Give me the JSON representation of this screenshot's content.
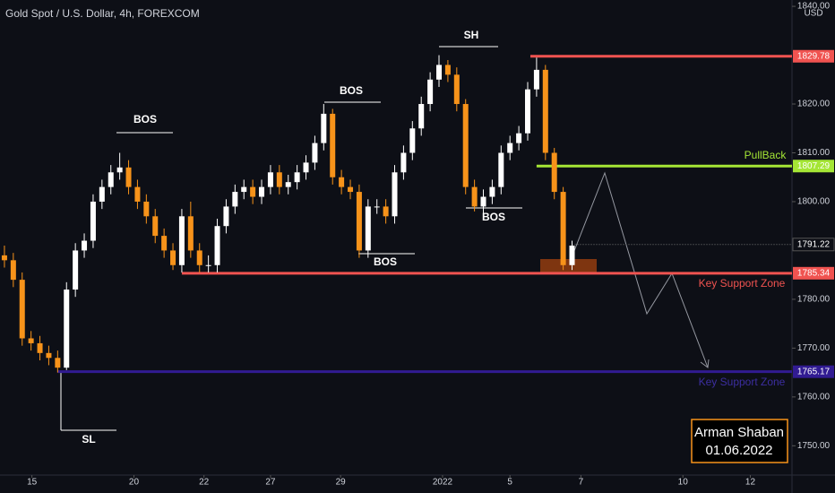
{
  "chart_data": {
    "type": "candlestick",
    "title": "Gold Spot / U.S. Dollar, 4h, FOREXCOM",
    "currency": "USD",
    "up_color": "#ffffff",
    "down_color": "#f7931a",
    "open": [
      1789,
      1788,
      1784,
      1772,
      1771,
      1769,
      1768,
      1766,
      1782,
      1790,
      1792,
      1800,
      1803,
      1806,
      1807,
      1803,
      1800,
      1797,
      1793,
      1790,
      1787,
      1797,
      1790,
      1787,
      1787,
      1795,
      1799,
      1802,
      1803,
      1801,
      1803,
      1806,
      1803,
      1804,
      1806,
      1808,
      1812,
      1818,
      1805,
      1803,
      1802,
      1790,
      1799,
      1799,
      1797,
      1806,
      1810,
      1815,
      1820,
      1825,
      1828,
      1826,
      1820,
      1803,
      1799,
      1801,
      1803,
      1810,
      1812,
      1814,
      1823,
      1827,
      1810,
      1802,
      1787
    ],
    "high": [
      1791,
      1789.5,
      1785.5,
      1773.5,
      1772.5,
      1770.5,
      1769.5,
      1783.5,
      1791.5,
      1793.5,
      1801.5,
      1804.5,
      1807.5,
      1810,
      1808.5,
      1804.5,
      1801.5,
      1798.5,
      1794.5,
      1791.5,
      1798.5,
      1800,
      1791.5,
      1789,
      1796.5,
      1800.5,
      1803.5,
      1804.5,
      1804.5,
      1804.5,
      1807.5,
      1807.5,
      1805.5,
      1807.5,
      1809.5,
      1813.5,
      1820,
      1819,
      1806.5,
      1804.5,
      1803.5,
      1800.5,
      1800.5,
      1800.5,
      1807.5,
      1811.5,
      1816.5,
      1821.5,
      1826.5,
      1830,
      1829,
      1827.5,
      1821,
      1804.5,
      1802.5,
      1804.5,
      1811.5,
      1813.5,
      1815.5,
      1824.5,
      1829.5,
      1828,
      1811,
      1803,
      1792
    ],
    "low": [
      1786.5,
      1782.5,
      1770.5,
      1769.5,
      1767.5,
      1766.5,
      1765,
      1765.5,
      1780.5,
      1788.5,
      1790.5,
      1798.5,
      1801.5,
      1804.5,
      1801.5,
      1798.5,
      1795.5,
      1791.5,
      1788.5,
      1786,
      1785.5,
      1788.5,
      1785.5,
      1785.5,
      1785.5,
      1793.5,
      1797.5,
      1800.5,
      1799.5,
      1799.5,
      1801.5,
      1801.5,
      1801.5,
      1802.5,
      1804.5,
      1806.5,
      1810.5,
      1803.5,
      1801.5,
      1800.5,
      1788.5,
      1788.5,
      1797.5,
      1795.5,
      1795.5,
      1804.5,
      1808.5,
      1813.5,
      1818.5,
      1823.5,
      1824.5,
      1818.5,
      1801.5,
      1798,
      1797.5,
      1799.5,
      1801.5,
      1808.5,
      1810.5,
      1812.5,
      1821.5,
      1808.5,
      1800.5,
      1786,
      1786
    ],
    "close": [
      1788,
      1784,
      1772,
      1771,
      1769,
      1768,
      1766,
      1782,
      1790,
      1792,
      1800,
      1803,
      1806,
      1807,
      1803,
      1800,
      1797,
      1793,
      1790,
      1787,
      1797,
      1790,
      1787,
      1787,
      1795,
      1799,
      1802,
      1803,
      1801,
      1803,
      1806,
      1803,
      1804,
      1806,
      1808,
      1812,
      1818,
      1805,
      1803,
      1802,
      1790,
      1799,
      1799,
      1797,
      1806,
      1810,
      1815,
      1820,
      1825,
      1828,
      1826,
      1820,
      1803,
      1799,
      1801,
      1803,
      1810,
      1812,
      1814,
      1823,
      1827,
      1810,
      1802,
      1787,
      1791
    ],
    "xlim": [
      -0.5,
      88.8
    ],
    "xticks": [
      {
        "value": 3.1,
        "label": "15"
      },
      {
        "value": 14.6,
        "label": "20"
      },
      {
        "value": 22.5,
        "label": "22"
      },
      {
        "value": 30,
        "label": "27"
      },
      {
        "value": 37.9,
        "label": "29"
      },
      {
        "value": 49.4,
        "label": "2022"
      },
      {
        "value": 57,
        "label": "5"
      },
      {
        "value": 65,
        "label": "7"
      },
      {
        "value": 76.5,
        "label": "10"
      },
      {
        "value": 84.1,
        "label": "12"
      }
    ],
    "ylim": [
      1744,
      1841.3
    ],
    "yticks": [
      {
        "value": 1750,
        "label": "1750.00"
      },
      {
        "value": 1760,
        "label": "1760.00"
      },
      {
        "value": 1770,
        "label": "1770.00"
      },
      {
        "value": 1780,
        "label": "1780.00"
      },
      {
        "value": 1800,
        "label": "1800.00"
      },
      {
        "value": 1810,
        "label": "1810.00"
      },
      {
        "value": 1820,
        "label": "1820.00"
      },
      {
        "value": 1840,
        "label": "1840.00"
      }
    ],
    "grid": false,
    "levels": [
      {
        "value": 1829.78,
        "color": "#f05350"
      },
      {
        "value": 1807.29,
        "color": "#a5e635",
        "note": "PullBack"
      },
      {
        "value": 1785.34,
        "color": "#f05350",
        "note": "Key Support Zone"
      },
      {
        "value": 1765.17,
        "color": "#311b92",
        "note": "Key Support Zone"
      }
    ],
    "last_price": 1791.22,
    "annotations": [
      "BOS",
      "BOS",
      "BOS",
      "BOS",
      "SH",
      "SL"
    ],
    "signature": {
      "name": "Arman Shaban",
      "date": "01.06.2022"
    }
  }
}
